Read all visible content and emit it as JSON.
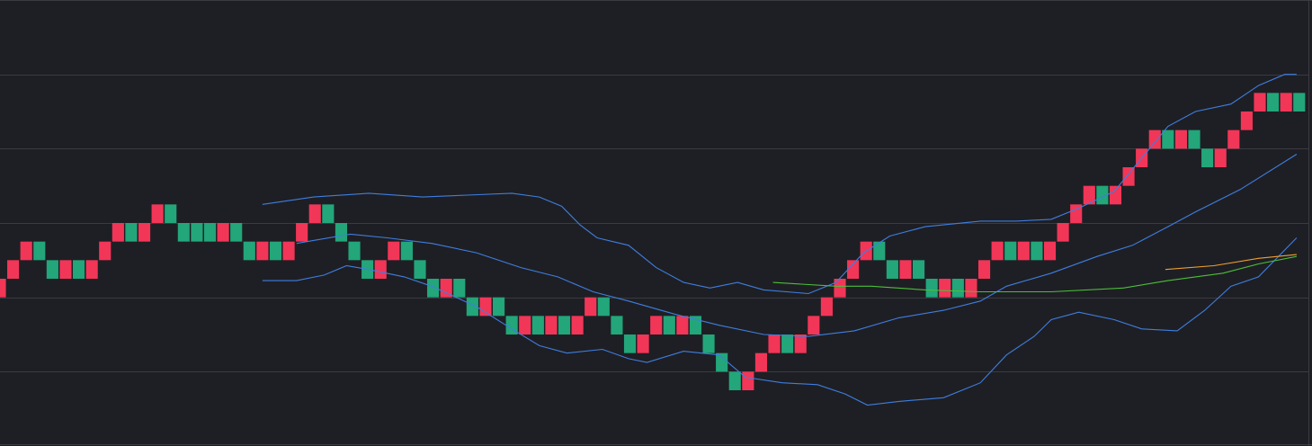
{
  "chart_data": {
    "type": "renko",
    "brick_size": 1,
    "up_color": "#f23658",
    "down_color": "#22a67a",
    "xlim": [
      0,
      99.7
    ],
    "ylim": [
      0,
      24
    ],
    "grid": true,
    "ygrid": [
      4,
      8,
      12,
      16,
      20
    ],
    "values": [
      8,
      9,
      10,
      10,
      9,
      9,
      9,
      9,
      10,
      11,
      11,
      11,
      12,
      12,
      11,
      11,
      11,
      11,
      11,
      10,
      10,
      10,
      10,
      11,
      12,
      12,
      11,
      10,
      9,
      9,
      10,
      10,
      9,
      8,
      8,
      8,
      7,
      7,
      7,
      6,
      6,
      6,
      6,
      6,
      6,
      7,
      7,
      6,
      5,
      5,
      6,
      6,
      6,
      6,
      5,
      4,
      3,
      3,
      4,
      5,
      5,
      5,
      6,
      7,
      8,
      9,
      10,
      10,
      9,
      9,
      9,
      8,
      8,
      8,
      8,
      9,
      10,
      10,
      10,
      10,
      10,
      11,
      12,
      13,
      13,
      13,
      14,
      15,
      16,
      16,
      16,
      16,
      15,
      15,
      16,
      17,
      18,
      18,
      18,
      18
    ],
    "directions": [
      "up",
      "up",
      "up",
      "down",
      "down",
      "up",
      "down",
      "up",
      "up",
      "up",
      "down",
      "up",
      "up",
      "down",
      "down",
      "down",
      "down",
      "up",
      "down",
      "down",
      "up",
      "down",
      "up",
      "up",
      "up",
      "down",
      "down",
      "down",
      "down",
      "up",
      "up",
      "down",
      "down",
      "down",
      "up",
      "down",
      "down",
      "up",
      "down",
      "down",
      "up",
      "down",
      "up",
      "down",
      "up",
      "up",
      "down",
      "down",
      "down",
      "up",
      "up",
      "down",
      "up",
      "down",
      "down",
      "down",
      "down",
      "up",
      "up",
      "up",
      "down",
      "up",
      "up",
      "up",
      "up",
      "up",
      "up",
      "down",
      "down",
      "up",
      "down",
      "down",
      "up",
      "down",
      "up",
      "up",
      "up",
      "down",
      "up",
      "down",
      "up",
      "up",
      "up",
      "up",
      "down",
      "up",
      "up",
      "up",
      "up",
      "down",
      "up",
      "down",
      "down",
      "up",
      "up",
      "up",
      "up",
      "down",
      "up",
      "down"
    ],
    "lines": [
      {
        "color": "#3f7ee0",
        "x": [
          20.0,
          23.9,
          28.1,
          32.2,
          35.6,
          39.0,
          41.1,
          42.8,
          44.2,
          45.5,
          47.9,
          50.0,
          52.1,
          54.1,
          56.2,
          58.2,
          61.6,
          63.7,
          65.8,
          67.8,
          70.5,
          74.7,
          77.4,
          80.1,
          82.2,
          84.9,
          89.0,
          91.1,
          93.8,
          95.9,
          97.9,
          98.8
        ],
        "values": [
          13.0,
          13.4,
          13.6,
          13.4,
          13.5,
          13.6,
          13.4,
          12.9,
          11.9,
          11.2,
          10.8,
          9.6,
          8.8,
          8.5,
          8.8,
          8.4,
          8.2,
          8.8,
          10.4,
          11.3,
          11.8,
          12.1,
          12.1,
          12.2,
          12.8,
          13.7,
          17.2,
          18.0,
          18.4,
          19.4,
          20.0,
          20.0
        ]
      },
      {
        "color": "#3f7ee0",
        "x": [
          20.0,
          22.6,
          24.7,
          26.4,
          28.1,
          30.8,
          32.9,
          36.3,
          39.0,
          41.1,
          43.2,
          45.9,
          47.9,
          49.3,
          52.1,
          54.8,
          56.8,
          59.6,
          62.3,
          64.4,
          66.1,
          68.5,
          71.9,
          74.7,
          76.7,
          78.8,
          80.1,
          82.2,
          84.9,
          87.0,
          89.7,
          91.8,
          93.8,
          95.9,
          98.8
        ],
        "values": [
          8.9,
          8.9,
          9.2,
          9.7,
          9.5,
          9.1,
          8.6,
          7.5,
          6.3,
          5.4,
          5.0,
          5.2,
          4.7,
          4.5,
          5.1,
          4.9,
          3.7,
          3.4,
          3.3,
          2.8,
          2.2,
          2.4,
          2.6,
          3.4,
          4.9,
          5.9,
          6.8,
          7.2,
          6.8,
          6.3,
          6.2,
          7.3,
          8.6,
          9.1,
          11.2
        ]
      },
      {
        "color": "#3f7ee0",
        "x": [
          22.6,
          26.7,
          29.5,
          32.9,
          36.3,
          39.7,
          42.5,
          45.2,
          47.9,
          51.4,
          54.8,
          58.2,
          61.6,
          65.1,
          68.5,
          71.9,
          74.7,
          76.7,
          80.1,
          83.6,
          86.3,
          89.0,
          91.1,
          94.5,
          98.8
        ],
        "values": [
          10.9,
          11.4,
          11.2,
          10.9,
          10.4,
          9.6,
          9.1,
          8.3,
          7.8,
          7.1,
          6.5,
          6.0,
          5.9,
          6.2,
          6.9,
          7.3,
          7.8,
          8.6,
          9.3,
          10.2,
          10.8,
          11.8,
          12.6,
          13.8,
          15.7
        ]
      },
      {
        "color": "#4cbf3a",
        "x": [
          58.9,
          63.7,
          66.4,
          70.5,
          74.7,
          80.1,
          85.6,
          89.0,
          93.2,
          95.9,
          98.8
        ],
        "values": [
          8.8,
          8.6,
          8.6,
          8.4,
          8.3,
          8.3,
          8.5,
          8.9,
          9.3,
          9.8,
          10.2
        ]
      },
      {
        "color": "#f0a030",
        "x": [
          88.8,
          92.5,
          95.9,
          98.8
        ],
        "values": [
          9.5,
          9.7,
          10.1,
          10.3
        ]
      }
    ]
  }
}
